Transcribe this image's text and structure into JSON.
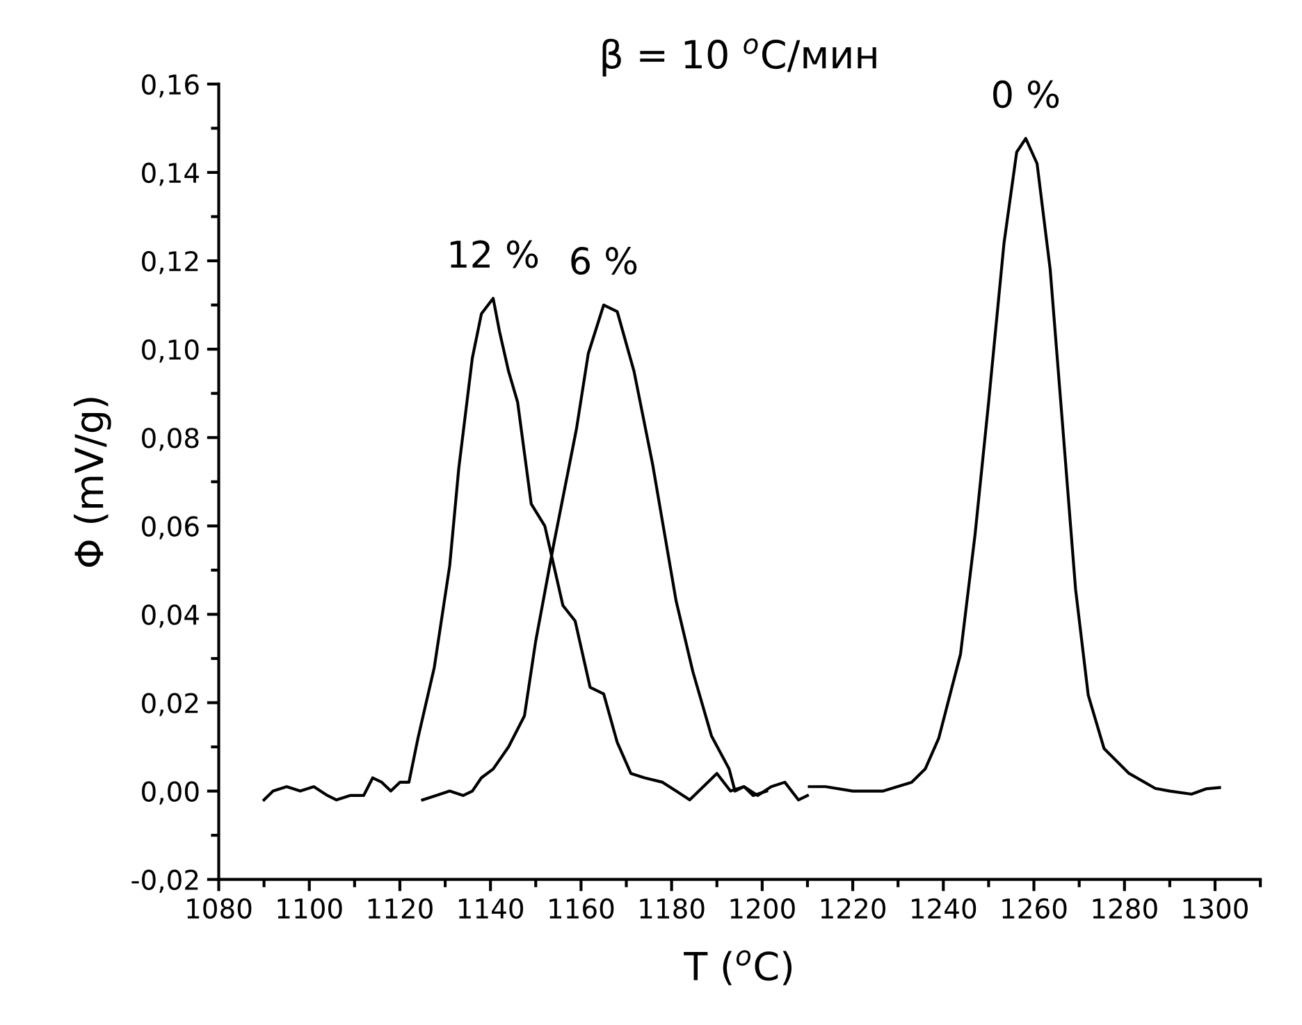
{
  "chart_data": {
    "type": "line",
    "title": "β = 10 $^{o}$C/мин",
    "xlabel": "T ($^{o}$C)",
    "ylabel": "Φ (mV/g)",
    "xlim": [
      1080,
      1310
    ],
    "xticks": [
      1080,
      1100,
      1120,
      1140,
      1160,
      1180,
      1200,
      1220,
      1240,
      1260,
      1280,
      1300
    ],
    "ylim": [
      -0.02,
      0.16
    ],
    "yticks": [
      {
        "value": -0.02,
        "label": "-0,02"
      },
      {
        "value": 0,
        "label": "0,00"
      },
      {
        "value": 0.02,
        "label": "0,02"
      },
      {
        "value": 0.04,
        "label": "0,04"
      },
      {
        "value": 0.06,
        "label": "0,06"
      },
      {
        "value": 0.08,
        "label": "0,08"
      },
      {
        "value": 0.1,
        "label": "0,10"
      },
      {
        "value": 0.12,
        "label": "0,12"
      },
      {
        "value": 0.14,
        "label": "0,14"
      },
      {
        "value": 0.16,
        "label": "0,16"
      }
    ],
    "grid": false,
    "marker": "none",
    "line_style": "solid",
    "annotations": [
      {
        "text": "12 %",
        "x": 1140.6,
        "y": 0.1115
      },
      {
        "text": "6 %",
        "x": 1165,
        "y": 0.11
      },
      {
        "text": "0 %",
        "x": 1258.2,
        "y": 0.1477
      }
    ],
    "series": [
      {
        "color": "#000000",
        "x": [
          1090,
          1092,
          1095,
          1098,
          1101,
          1104,
          1106,
          1109,
          1112,
          1114,
          1116,
          1118,
          1120,
          1122,
          1124,
          1127.6,
          1131,
          1133,
          1136,
          1138,
          1140.6,
          1142,
          1144,
          1146,
          1149,
          1152,
          1156,
          1158.7,
          1162,
          1165,
          1168,
          1171,
          1174,
          1178,
          1181,
          1184,
          1187,
          1190,
          1193,
          1196,
          1199,
          1202,
          1205,
          1208,
          1210
        ],
        "values": [
          -0.002,
          0.0,
          0.001,
          0.0,
          0.001,
          -0.001,
          -0.002,
          -0.001,
          -0.001,
          0.003,
          0.002,
          0.0,
          0.002,
          0.002,
          0.012,
          0.028,
          0.051,
          0.073,
          0.098,
          0.108,
          0.1115,
          0.104,
          0.095,
          0.088,
          0.065,
          0.06,
          0.042,
          0.0385,
          0.0235,
          0.022,
          0.011,
          0.004,
          0.003,
          0.002,
          0.0,
          -0.002,
          0.001,
          0.004,
          0.0,
          0.001,
          -0.001,
          0.001,
          0.002,
          -0.002,
          -0.001
        ]
      },
      {
        "color": "#000000",
        "x": [
          1125,
          1128,
          1131,
          1134,
          1136,
          1138,
          1140.6,
          1144,
          1147.5,
          1150,
          1154,
          1159,
          1161.6,
          1165,
          1168,
          1171.7,
          1175.8,
          1181,
          1184.7,
          1188.8,
          1192.7,
          1194,
          1196,
          1198,
          1201
        ],
        "values": [
          -0.002,
          -0.001,
          0.0,
          -0.001,
          0.0,
          0.003,
          0.005,
          0.01,
          0.017,
          0.034,
          0.056,
          0.082,
          0.099,
          0.11,
          0.1085,
          0.095,
          0.074,
          0.043,
          0.027,
          0.0125,
          0.005,
          0.0,
          0.001,
          -0.001,
          0.0
        ]
      },
      {
        "color": "#000000",
        "x": [
          1210.4,
          1214,
          1220,
          1226.7,
          1233,
          1236,
          1239,
          1243.8,
          1247,
          1250,
          1253.4,
          1256.2,
          1258.2,
          1260.7,
          1263.6,
          1266.4,
          1269.2,
          1272,
          1275.5,
          1281,
          1286.8,
          1290,
          1294.8,
          1298,
          1301
        ],
        "values": [
          0.001,
          0.001,
          0.0,
          0.0,
          0.002,
          0.005,
          0.012,
          0.031,
          0.058,
          0.088,
          0.124,
          0.1446,
          0.1477,
          0.142,
          0.118,
          0.082,
          0.0457,
          0.0217,
          0.0096,
          0.004,
          0.0006,
          0.0,
          -0.0007,
          0.0005,
          0.0008
        ]
      }
    ]
  }
}
